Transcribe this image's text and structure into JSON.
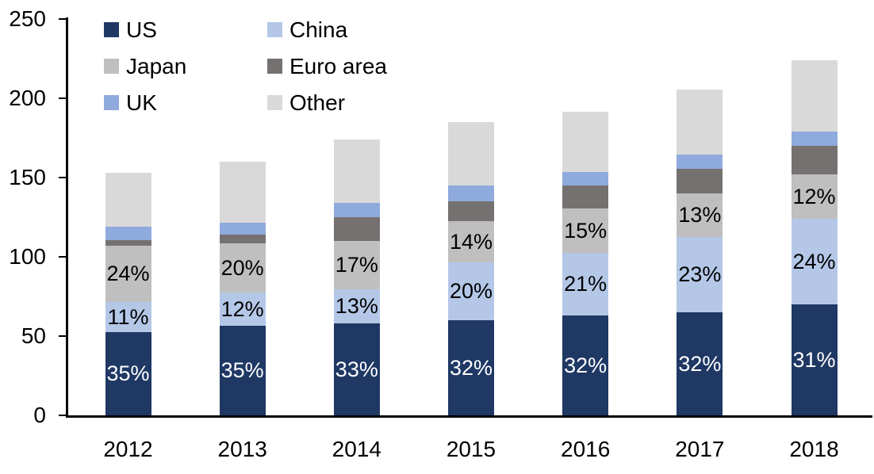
{
  "chart_data": {
    "type": "bar",
    "subtype": "stacked-column",
    "categories": [
      "2012",
      "2013",
      "2014",
      "2015",
      "2016",
      "2017",
      "2018"
    ],
    "series": [
      {
        "name": "US",
        "color": "#1F3864",
        "values": [
          52.5,
          56.5,
          58,
          60,
          63,
          65,
          70
        ],
        "labels": [
          "35%",
          "35%",
          "33%",
          "32%",
          "32%",
          "32%",
          "31%"
        ],
        "label_color": "#FFFFFF"
      },
      {
        "name": "China",
        "color": "#B4C7E7",
        "values": [
          19,
          21,
          21.5,
          36.5,
          39.5,
          47.5,
          54
        ],
        "labels": [
          "11%",
          "12%",
          "13%",
          "20%",
          "21%",
          "23%",
          "24%"
        ],
        "label_color": "#000000"
      },
      {
        "name": "Japan",
        "color": "#BFBFBF",
        "values": [
          35.5,
          31,
          30.5,
          26,
          28,
          27.5,
          28
        ],
        "labels": [
          "24%",
          "20%",
          "17%",
          "14%",
          "15%",
          "13%",
          "12%"
        ],
        "label_color": "#000000"
      },
      {
        "name": "Euro area",
        "color": "#767171",
        "values": [
          3.5,
          5.5,
          15,
          12.5,
          14.5,
          15.5,
          18
        ]
      },
      {
        "name": "UK",
        "color": "#8FAADC",
        "values": [
          8.5,
          7.5,
          9,
          10,
          8.5,
          9,
          9
        ]
      },
      {
        "name": "Other",
        "color": "#D9D9D9",
        "values": [
          34,
          38.5,
          40,
          40,
          38,
          41,
          45
        ]
      }
    ],
    "totals": [
      153,
      160,
      174,
      185,
      191.5,
      205.5,
      224
    ],
    "y_axis": {
      "min": 0,
      "max": 250,
      "ticks": [
        "0",
        "50",
        "100",
        "150",
        "200",
        "250"
      ],
      "tick_values": [
        0,
        50,
        100,
        150,
        200,
        250
      ]
    },
    "legend": {
      "position": "top-left-inside",
      "entries": [
        "US",
        "China",
        "Japan",
        "Euro area",
        "UK",
        "Other"
      ]
    },
    "grid": false,
    "axis_color": "#000000",
    "background_color": "#FFFFFF"
  }
}
